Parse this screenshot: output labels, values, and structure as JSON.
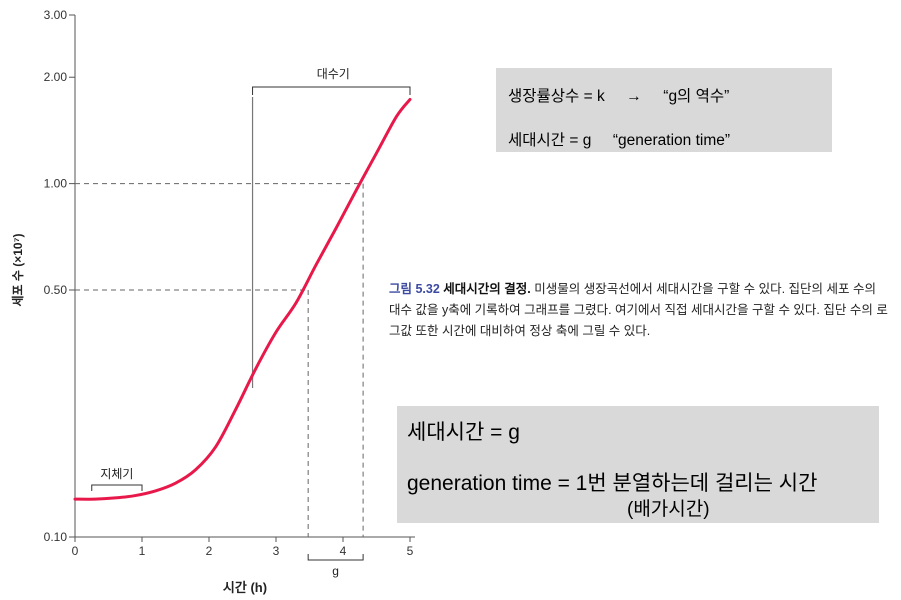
{
  "chart_data": {
    "type": "line",
    "y_scale": "log",
    "xlabel": "시간 (h)",
    "ylabel": "세포 수 (×10⁷)",
    "xlim": [
      0,
      5
    ],
    "ylim": [
      0.1,
      3.0
    ],
    "x_ticks": [
      0,
      1,
      2,
      3,
      4,
      5
    ],
    "x_tick_labels": [
      "0",
      "1",
      "2",
      "3",
      "4",
      "5"
    ],
    "y_ticks": [
      0.1,
      0.5,
      1.0,
      2.0,
      3.0
    ],
    "y_tick_labels": [
      "0.10",
      "0.50",
      "1.00",
      "2.00",
      "3.00"
    ],
    "grid": false,
    "series_color": "#e8194a",
    "series": [
      {
        "x": [
          0,
          0.3,
          0.6,
          0.9,
          1.2,
          1.5,
          1.8,
          2.1,
          2.4,
          2.7,
          3.0,
          3.3,
          3.6,
          3.9,
          4.2,
          4.5,
          4.8,
          5.0
        ],
        "y": [
          0.128,
          0.128,
          0.129,
          0.131,
          0.135,
          0.142,
          0.155,
          0.18,
          0.23,
          0.3,
          0.38,
          0.46,
          0.59,
          0.75,
          0.96,
          1.22,
          1.55,
          1.73
        ]
      }
    ],
    "reference_lines": [
      {
        "y": 0.5,
        "x": 3.48
      },
      {
        "y": 1.0,
        "x": 4.3
      }
    ],
    "annotations": {
      "lag_label": "지체기",
      "lag_range": [
        0.25,
        1.0
      ],
      "log_label": "대수기",
      "log_range": [
        2.65,
        5.0
      ],
      "g_label": "g",
      "g_range": [
        3.48,
        4.3
      ]
    }
  },
  "box1": {
    "line1": "생장률상수 = k     →     “g의 역수”",
    "line2": "세대시간 = g     “generation time”"
  },
  "caption": {
    "figure": "그림 5.32",
    "title": "세대시간의 결정.",
    "body": "미생물의 생장곡선에서 세대시간을 구할 수 있다. 집단의 세포 수의 대수 값을 y축에 기록하여 그래프를 그렸다. 여기에서 직접 세대시간을 구할 수 있다. 집단 수의 로그값 또한 시간에 대비하여 정상 축에 그릴 수 있다."
  },
  "box2": {
    "line1": "세대시간 = g",
    "line2": "generation time = 1번 분열하는데 걸리는 시간",
    "line3": "(배가시간)"
  }
}
